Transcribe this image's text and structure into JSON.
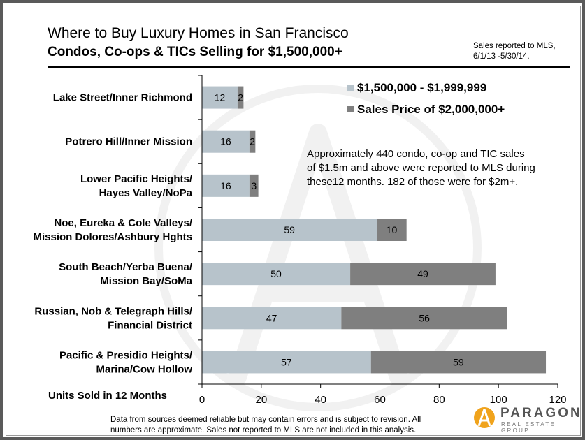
{
  "header": {
    "title": "Where to Buy Luxury Homes in San Francisco",
    "subtitle": "Condos, Co-ops & TICs Selling for $1,500,000+",
    "note_line1": "Sales reported to MLS,",
    "note_line2": "6/1/13 -5/30/14."
  },
  "annotation": {
    "line1": "Approximately 440 condo, co-op and TIC sales",
    "line2": "of $1.5m and above were reported to MLS during",
    "line3": "these12 months. 182 of those were for $2m+."
  },
  "footer": {
    "line1": "Data from sources deemed reliable but may contain errors and is subject to revision. All",
    "line2": "numbers are approximate. Sales not reported to MLS are not included in this analysis."
  },
  "logo": {
    "name": "PARAGON",
    "tagline": "REAL ESTATE GROUP"
  },
  "colors": {
    "series1": "#b7c3cb",
    "series2": "#7f7f7f",
    "axis": "#000000"
  },
  "chart_data": {
    "type": "bar",
    "orientation": "horizontal",
    "stacked": true,
    "categories": [
      [
        "Lake Street/Inner Richmond"
      ],
      [
        "Potrero Hill/Inner Mission"
      ],
      [
        "Lower Pacific Heights/",
        "Hayes Valley/NoPa"
      ],
      [
        "Noe, Eureka & Cole Valleys/",
        "Mission Dolores/Ashbury Hghts"
      ],
      [
        "South Beach/Yerba Buena/",
        "Mission Bay/SoMa"
      ],
      [
        "Russian, Nob & Telegraph Hills/",
        "Financial District"
      ],
      [
        "Pacific & Presidio Heights/",
        "Marina/Cow Hollow"
      ]
    ],
    "series": [
      {
        "name": "$1,500,000 - $1,999,999",
        "color": "#b7c3cb",
        "values": [
          12,
          16,
          16,
          59,
          50,
          47,
          57
        ]
      },
      {
        "name": "Sales Price of $2,000,000+",
        "color": "#7f7f7f",
        "values": [
          2,
          2,
          3,
          10,
          49,
          56,
          59
        ]
      }
    ],
    "xlabel": "Units Sold in 12 Months",
    "xlim": [
      0,
      120
    ],
    "xticks": [
      0,
      20,
      40,
      60,
      80,
      100,
      120
    ],
    "grid": false,
    "legend_position": "top-right"
  }
}
